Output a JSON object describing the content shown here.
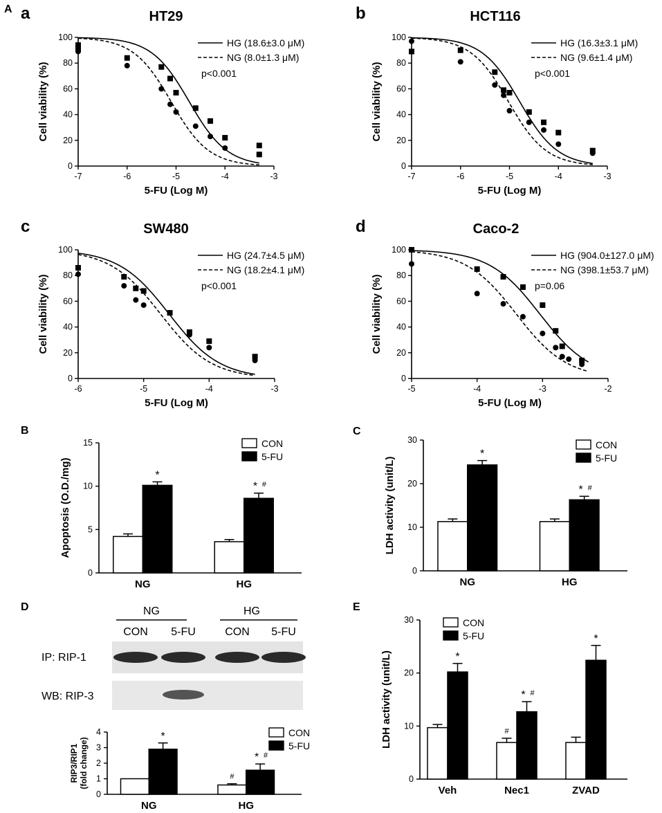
{
  "figure_label": "A",
  "colors": {
    "bar_con": "#ffffff",
    "bar_5fu": "#000000",
    "line": "#000000",
    "blot_bg": "#e2e2e2",
    "band": "#2a2a2a"
  },
  "chart_data": [
    {
      "id": "a",
      "type": "scatter",
      "panel": "a",
      "title": "HT29",
      "xlabel": "5-FU (Log M)",
      "ylabel": "Cell viability (%)",
      "xlim": [
        -7,
        -3
      ],
      "ylim": [
        0,
        100
      ],
      "xticks": [
        "-7",
        "-6",
        "-5",
        "-4",
        "-3"
      ],
      "yticks": [
        "0",
        "20",
        "40",
        "60",
        "80",
        "100"
      ],
      "legend": [
        "HG (18.6±3.0 μM)",
        "NG (8.0±1.3 μM)"
      ],
      "pvalue": "p<0.001",
      "series": [
        {
          "name": "HG",
          "marker": "square",
          "line": "solid",
          "logIC50": -4.73,
          "hill": 0.75,
          "x": [
            -7,
            -7,
            -6,
            -5.3,
            -5.12,
            -5,
            -4.6,
            -4.3,
            -4,
            -3.3,
            -3.3
          ],
          "y": [
            94,
            91,
            84,
            77,
            68,
            57,
            45,
            35,
            22,
            16,
            9
          ]
        },
        {
          "name": "NG",
          "marker": "circle",
          "line": "dashed",
          "logIC50": -5.1,
          "hill": 0.75,
          "x": [
            -7,
            -6,
            -5.3,
            -5.12,
            -5,
            -4.6,
            -4.3,
            -4,
            -3.3
          ],
          "y": [
            89,
            78,
            60,
            48,
            42,
            31,
            23,
            14,
            9
          ]
        }
      ]
    },
    {
      "id": "b",
      "type": "scatter",
      "panel": "b",
      "title": "HCT116",
      "xlabel": "5-FU (Log M)",
      "ylabel": "Cell viability (%)",
      "xlim": [
        -7,
        -3
      ],
      "ylim": [
        0,
        100
      ],
      "xticks": [
        "-7",
        "-6",
        "-5",
        "-4",
        "-3"
      ],
      "yticks": [
        "0",
        "20",
        "40",
        "60",
        "80",
        "100"
      ],
      "legend": [
        "HG (16.3±3.1 μM)",
        "NG (9.6±1.4 μM)"
      ],
      "pvalue": "p<0.001",
      "series": [
        {
          "name": "HG",
          "marker": "square",
          "line": "solid",
          "logIC50": -4.79,
          "hill": 0.75,
          "x": [
            -7,
            -6,
            -5.3,
            -5.12,
            -5,
            -4.6,
            -4.3,
            -4,
            -3.3
          ],
          "y": [
            89,
            90,
            73,
            59,
            57,
            42,
            34,
            26,
            12
          ]
        },
        {
          "name": "NG",
          "marker": "circle",
          "line": "dashed",
          "logIC50": -5.02,
          "hill": 0.75,
          "x": [
            -7,
            -6,
            -5.3,
            -5.12,
            -5,
            -4.6,
            -4.3,
            -4,
            -3.3
          ],
          "y": [
            97,
            81,
            63,
            55,
            43,
            34,
            28,
            17,
            10
          ]
        }
      ]
    },
    {
      "id": "c",
      "type": "scatter",
      "panel": "c",
      "title": "SW480",
      "xlabel": "5-FU (Log M)",
      "ylabel": "Cell viability (%)",
      "xlim": [
        -6,
        -3
      ],
      "ylim": [
        0,
        100
      ],
      "xticks": [
        "-6",
        "-5",
        "-4",
        "-3"
      ],
      "yticks": [
        "0",
        "20",
        "40",
        "60",
        "80",
        "100"
      ],
      "legend": [
        "HG (24.7±4.5 μM)",
        "NG (18.2±4.1 μM)"
      ],
      "pvalue": "p<0.001",
      "series": [
        {
          "name": "HG",
          "marker": "square",
          "line": "solid",
          "logIC50": -4.61,
          "hill": 0.75,
          "x": [
            -6,
            -5.3,
            -5.12,
            -5,
            -4.6,
            -4.3,
            -4,
            -3.3
          ],
          "y": [
            86,
            79,
            70,
            68,
            51,
            36,
            29,
            17
          ]
        },
        {
          "name": "NG",
          "marker": "circle",
          "line": "dashed",
          "logIC50": -4.74,
          "hill": 0.75,
          "x": [
            -6,
            -5.3,
            -5.12,
            -5,
            -4.6,
            -4.3,
            -4,
            -3.3
          ],
          "y": [
            81,
            72,
            61,
            57,
            51,
            34,
            24,
            14
          ]
        }
      ]
    },
    {
      "id": "d",
      "type": "scatter",
      "panel": "d",
      "title": "Caco-2",
      "xlabel": "5-FU (Log M)",
      "ylabel": "Cell viability (%)",
      "xlim": [
        -5,
        -2
      ],
      "ylim": [
        0,
        100
      ],
      "xticks": [
        "-5",
        "-4",
        "-3",
        "-2"
      ],
      "yticks": [
        "0",
        "20",
        "40",
        "60",
        "80",
        "100"
      ],
      "legend": [
        "HG (904.0±127.0 μM)",
        "NG (398.1±53.7 μM)"
      ],
      "pvalue": "p=0.06",
      "series": [
        {
          "name": "HG",
          "marker": "square",
          "line": "solid",
          "logIC50": -3.04,
          "hill": 0.75,
          "x": [
            -5,
            -4,
            -3.6,
            -3.3,
            -3,
            -2.8,
            -2.7,
            -2.4
          ],
          "y": [
            100,
            85,
            79,
            71,
            57,
            37,
            25,
            14
          ]
        },
        {
          "name": "NG",
          "marker": "circle",
          "line": "dashed",
          "logIC50": -3.4,
          "hill": 0.75,
          "x": [
            -5,
            -4,
            -3.6,
            -3.3,
            -3,
            -2.8,
            -2.7,
            -2.6,
            -2.4
          ],
          "y": [
            89,
            66,
            58,
            48,
            35,
            24,
            17,
            15,
            11
          ]
        }
      ]
    },
    {
      "id": "B",
      "type": "bar",
      "panel": "B",
      "ylabel": "Apoptosis (O.D./mg)",
      "ylim": [
        0,
        15
      ],
      "yticks": [
        "0",
        "5",
        "10",
        "15"
      ],
      "categories": [
        "NG",
        "HG"
      ],
      "legend": [
        "CON",
        "5-FU"
      ],
      "series": [
        {
          "name": "CON",
          "values": [
            4.2,
            3.6
          ],
          "err": [
            0.3,
            0.25
          ],
          "marks": [
            [],
            []
          ]
        },
        {
          "name": "5-FU",
          "values": [
            10.1,
            8.6
          ],
          "err": [
            0.4,
            0.6
          ],
          "marks": [
            [
              "*"
            ],
            [
              "*",
              "#"
            ]
          ]
        }
      ]
    },
    {
      "id": "C",
      "type": "bar",
      "panel": "C",
      "ylabel": "LDH activity (unit/L)",
      "ylim": [
        0,
        30
      ],
      "yticks": [
        "0",
        "10",
        "20",
        "30"
      ],
      "categories": [
        "NG",
        "HG"
      ],
      "legend": [
        "CON",
        "5-FU"
      ],
      "series": [
        {
          "name": "CON",
          "values": [
            11.3,
            11.3
          ],
          "err": [
            0.6,
            0.6
          ],
          "marks": [
            [],
            []
          ]
        },
        {
          "name": "5-FU",
          "values": [
            24.3,
            16.3
          ],
          "err": [
            1.0,
            0.8
          ],
          "marks": [
            [
              "*"
            ],
            [
              "*",
              "#"
            ]
          ]
        }
      ]
    },
    {
      "id": "D",
      "type": "bar",
      "panel": "D",
      "ylabel": "RIP3/RIP1 (fold change)",
      "ylim": [
        0,
        4
      ],
      "yticks": [
        "0",
        "1",
        "2",
        "3",
        "4"
      ],
      "categories": [
        "NG",
        "HG"
      ],
      "legend": [
        "CON",
        "5-FU"
      ],
      "series": [
        {
          "name": "CON",
          "values": [
            1.0,
            0.6
          ],
          "err": [
            0,
            0.08
          ],
          "marks": [
            [],
            [
              "#"
            ]
          ]
        },
        {
          "name": "5-FU",
          "values": [
            2.9,
            1.55
          ],
          "err": [
            0.4,
            0.4
          ],
          "marks": [
            [
              "*"
            ],
            [
              "*",
              "#"
            ]
          ]
        }
      ]
    },
    {
      "id": "E",
      "type": "bar",
      "panel": "E",
      "ylabel": "LDH activity (unit/L)",
      "ylim": [
        0,
        30
      ],
      "yticks": [
        "0",
        "10",
        "20",
        "30"
      ],
      "categories": [
        "Veh",
        "Nec1",
        "ZVAD"
      ],
      "legend": [
        "CON",
        "5-FU"
      ],
      "series": [
        {
          "name": "CON",
          "values": [
            9.7,
            6.9,
            6.9
          ],
          "err": [
            0.6,
            0.8,
            1.0
          ],
          "marks": [
            [],
            [
              "#"
            ],
            []
          ]
        },
        {
          "name": "5-FU",
          "values": [
            20.2,
            12.7,
            22.4
          ],
          "err": [
            1.6,
            1.9,
            2.8
          ],
          "marks": [
            [
              "*"
            ],
            [
              "*",
              "#"
            ],
            [
              "*"
            ]
          ]
        }
      ]
    }
  ],
  "blot": {
    "panel": "D",
    "groups": [
      "NG",
      "HG"
    ],
    "lanes": [
      "CON",
      "5-FU",
      "CON",
      "5-FU"
    ],
    "rows": [
      "IP: RIP-1",
      "WB: RIP-3"
    ],
    "rip1_intensity": [
      1.0,
      1.0,
      1.0,
      1.0
    ],
    "rip3_intensity": [
      0.0,
      1.0,
      0.0,
      0.0
    ]
  }
}
